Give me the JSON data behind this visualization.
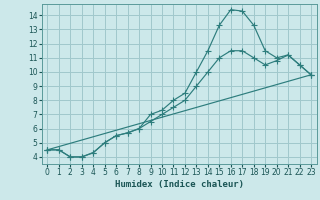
{
  "xlabel": "Humidex (Indice chaleur)",
  "bg_color": "#cce8ea",
  "grid_color": "#a0c8cc",
  "line_color": "#2d7d7d",
  "xlim": [
    -0.5,
    23.5
  ],
  "ylim": [
    3.5,
    14.8
  ],
  "xticks": [
    0,
    1,
    2,
    3,
    4,
    5,
    6,
    7,
    8,
    9,
    10,
    11,
    12,
    13,
    14,
    15,
    16,
    17,
    18,
    19,
    20,
    21,
    22,
    23
  ],
  "yticks": [
    4,
    5,
    6,
    7,
    8,
    9,
    10,
    11,
    12,
    13,
    14
  ],
  "line1_x": [
    0,
    1,
    2,
    3,
    4,
    5,
    6,
    7,
    8,
    9,
    10,
    11,
    12,
    13,
    14,
    15,
    16,
    17,
    18,
    19,
    20,
    21,
    22,
    23
  ],
  "line1_y": [
    4.5,
    4.5,
    4.0,
    4.0,
    4.3,
    5.0,
    5.5,
    5.7,
    6.0,
    7.0,
    7.3,
    8.0,
    8.5,
    10.0,
    11.5,
    13.3,
    14.4,
    14.3,
    13.3,
    11.5,
    11.0,
    11.2,
    10.5,
    9.8
  ],
  "line2_x": [
    0,
    1,
    2,
    3,
    4,
    5,
    6,
    7,
    8,
    9,
    10,
    11,
    12,
    13,
    14,
    15,
    16,
    17,
    18,
    19,
    20,
    21,
    22,
    23
  ],
  "line2_y": [
    4.5,
    4.5,
    4.0,
    4.0,
    4.3,
    5.0,
    5.5,
    5.7,
    6.0,
    6.5,
    7.0,
    7.5,
    8.0,
    9.0,
    10.0,
    11.0,
    11.5,
    11.5,
    11.0,
    10.5,
    10.8,
    11.2,
    10.5,
    9.8
  ],
  "line3_x": [
    0,
    23
  ],
  "line3_y": [
    4.5,
    9.8
  ]
}
